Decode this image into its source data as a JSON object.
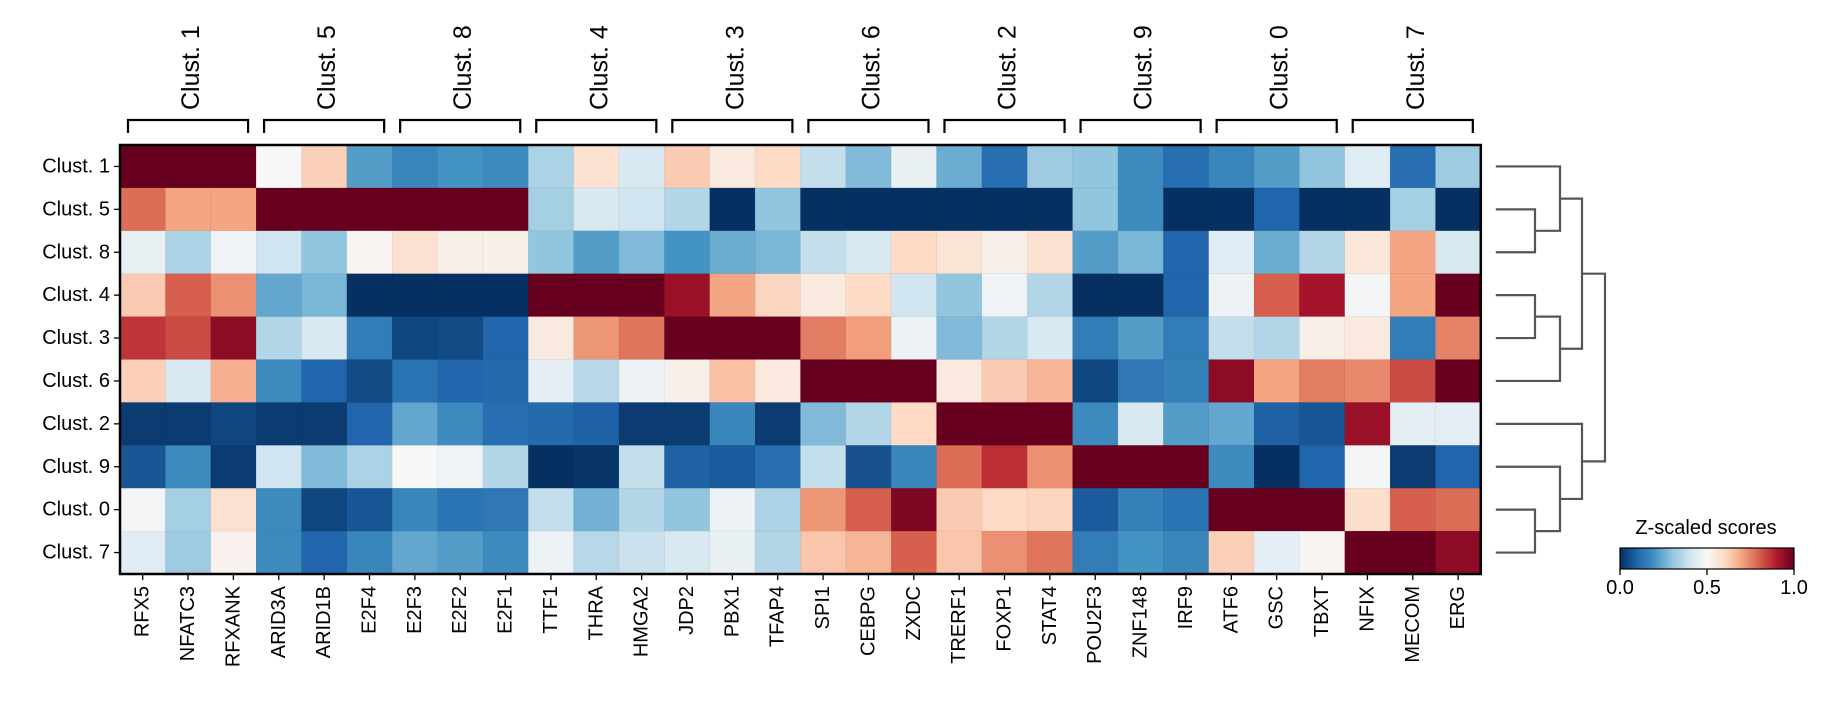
{
  "chart_data": {
    "type": "heatmap",
    "title": "",
    "rows": [
      "Clust. 1",
      "Clust. 5",
      "Clust. 8",
      "Clust. 4",
      "Clust. 3",
      "Clust. 6",
      "Clust. 2",
      "Clust. 9",
      "Clust. 0",
      "Clust. 7"
    ],
    "columns": [
      "RFX5",
      "NFATC3",
      "RFXANK",
      "ARID3A",
      "ARID1B",
      "E2F4",
      "E2F3",
      "E2F2",
      "E2F1",
      "TTF1",
      "THRA",
      "HMGA2",
      "JDP2",
      "PBX1",
      "TFAP4",
      "SPI1",
      "CEBPG",
      "ZXDC",
      "TRERF1",
      "FOXP1",
      "STAT4",
      "POU2F3",
      "ZNF148",
      "IRF9",
      "ATF6",
      "GSC",
      "TBXT",
      "NFIX",
      "MECOM",
      "ERG"
    ],
    "column_groups": [
      {
        "label": "Clust. 1",
        "columns": [
          "RFX5",
          "NFATC3",
          "RFXANK"
        ]
      },
      {
        "label": "Clust. 5",
        "columns": [
          "ARID3A",
          "ARID1B",
          "E2F4"
        ]
      },
      {
        "label": "Clust. 8",
        "columns": [
          "E2F3",
          "E2F2",
          "E2F1"
        ]
      },
      {
        "label": "Clust. 4",
        "columns": [
          "TTF1",
          "THRA",
          "HMGA2"
        ]
      },
      {
        "label": "Clust. 3",
        "columns": [
          "JDP2",
          "PBX1",
          "TFAP4"
        ]
      },
      {
        "label": "Clust. 6",
        "columns": [
          "SPI1",
          "CEBPG",
          "ZXDC"
        ]
      },
      {
        "label": "Clust. 2",
        "columns": [
          "TRERF1",
          "FOXP1",
          "STAT4"
        ]
      },
      {
        "label": "Clust. 9",
        "columns": [
          "POU2F3",
          "ZNF148",
          "IRF9"
        ]
      },
      {
        "label": "Clust. 0",
        "columns": [
          "ATF6",
          "GSC",
          "TBXT"
        ]
      },
      {
        "label": "Clust. 7",
        "columns": [
          "NFIX",
          "MECOM",
          "ERG"
        ]
      }
    ],
    "values": [
      [
        1.0,
        1.0,
        1.0,
        0.5,
        0.62,
        0.22,
        0.17,
        0.2,
        0.18,
        0.34,
        0.58,
        0.42,
        0.63,
        0.55,
        0.6,
        0.38,
        0.28,
        0.46,
        0.25,
        0.12,
        0.32,
        0.3,
        0.18,
        0.12,
        0.17,
        0.22,
        0.3,
        0.44,
        0.12,
        0.32
      ],
      [
        0.78,
        0.7,
        0.7,
        1.0,
        1.0,
        1.0,
        1.0,
        1.0,
        1.0,
        0.33,
        0.42,
        0.4,
        0.35,
        0.0,
        0.3,
        0.0,
        0.0,
        0.0,
        0.0,
        0.0,
        0.0,
        0.3,
        0.18,
        0.0,
        0.0,
        0.1,
        0.0,
        0.0,
        0.33,
        0.0
      ],
      [
        0.46,
        0.34,
        0.48,
        0.4,
        0.3,
        0.51,
        0.58,
        0.53,
        0.53,
        0.3,
        0.22,
        0.28,
        0.2,
        0.25,
        0.27,
        0.38,
        0.42,
        0.6,
        0.57,
        0.53,
        0.58,
        0.22,
        0.27,
        0.1,
        0.44,
        0.25,
        0.35,
        0.56,
        0.7,
        0.42
      ],
      [
        0.63,
        0.8,
        0.73,
        0.24,
        0.27,
        0.0,
        0.0,
        0.0,
        0.0,
        1.0,
        1.0,
        1.0,
        0.93,
        0.7,
        0.61,
        0.55,
        0.6,
        0.4,
        0.3,
        0.48,
        0.35,
        0.0,
        0.0,
        0.1,
        0.47,
        0.8,
        0.92,
        0.49,
        0.7,
        1.0
      ],
      [
        0.86,
        0.83,
        0.95,
        0.35,
        0.42,
        0.15,
        0.04,
        0.05,
        0.1,
        0.55,
        0.72,
        0.77,
        1.0,
        1.0,
        1.0,
        0.76,
        0.71,
        0.47,
        0.28,
        0.35,
        0.42,
        0.15,
        0.22,
        0.15,
        0.38,
        0.35,
        0.53,
        0.55,
        0.15,
        0.75
      ],
      [
        0.62,
        0.42,
        0.68,
        0.18,
        0.1,
        0.05,
        0.13,
        0.1,
        0.11,
        0.45,
        0.36,
        0.47,
        0.53,
        0.65,
        0.55,
        1.0,
        1.0,
        1.0,
        0.55,
        0.63,
        0.67,
        0.04,
        0.14,
        0.16,
        0.95,
        0.7,
        0.76,
        0.74,
        0.83,
        1.0
      ],
      [
        0.02,
        0.02,
        0.04,
        0.02,
        0.02,
        0.1,
        0.24,
        0.18,
        0.12,
        0.11,
        0.09,
        0.02,
        0.02,
        0.17,
        0.02,
        0.28,
        0.35,
        0.6,
        1.0,
        1.0,
        1.0,
        0.18,
        0.42,
        0.22,
        0.24,
        0.09,
        0.07,
        0.93,
        0.45,
        0.45
      ],
      [
        0.07,
        0.18,
        0.02,
        0.4,
        0.28,
        0.34,
        0.5,
        0.48,
        0.35,
        0.0,
        0.01,
        0.38,
        0.09,
        0.08,
        0.12,
        0.38,
        0.06,
        0.17,
        0.78,
        0.87,
        0.73,
        1.0,
        1.0,
        1.0,
        0.18,
        0.0,
        0.1,
        0.49,
        0.02,
        0.1
      ],
      [
        0.49,
        0.33,
        0.58,
        0.18,
        0.04,
        0.07,
        0.17,
        0.13,
        0.14,
        0.38,
        0.26,
        0.35,
        0.3,
        0.47,
        0.34,
        0.72,
        0.8,
        0.97,
        0.63,
        0.6,
        0.61,
        0.08,
        0.16,
        0.13,
        1.0,
        1.0,
        1.0,
        0.59,
        0.8,
        0.78
      ],
      [
        0.44,
        0.32,
        0.52,
        0.18,
        0.1,
        0.17,
        0.24,
        0.22,
        0.18,
        0.47,
        0.36,
        0.39,
        0.42,
        0.46,
        0.35,
        0.64,
        0.67,
        0.8,
        0.64,
        0.73,
        0.77,
        0.15,
        0.2,
        0.17,
        0.62,
        0.45,
        0.51,
        1.0,
        1.0,
        0.95
      ]
    ],
    "colormap": "RdBu_r",
    "colormap_stops": [
      "#053061",
      "#2166ac",
      "#4393c3",
      "#92c5de",
      "#d1e5f0",
      "#f7f7f7",
      "#fddbc7",
      "#f4a582",
      "#d6604d",
      "#b2182b",
      "#67001f"
    ],
    "vmin": 0.0,
    "vmax": 1.0,
    "row_dendrogram": true,
    "colorbar": {
      "title": "Z-scaled scores",
      "ticks": [
        "0.0",
        "0.5",
        "1.0"
      ],
      "placement": "bottom-right"
    },
    "grid": false
  }
}
